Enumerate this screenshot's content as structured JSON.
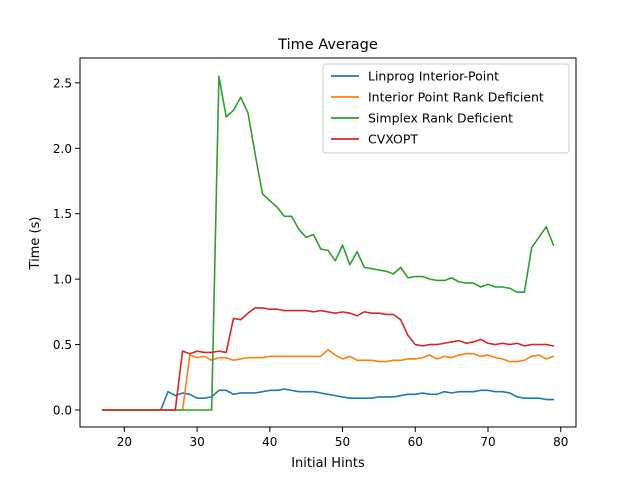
{
  "chart_data": {
    "type": "line",
    "title": "Time Average",
    "xlabel": "Initial Hints",
    "ylabel": "Time (s)",
    "xlim": [
      13.9,
      82.1
    ],
    "ylim": [
      -0.13,
      2.69
    ],
    "xticks": [
      20,
      30,
      40,
      50,
      60,
      70,
      80
    ],
    "yticks": [
      0.0,
      0.5,
      1.0,
      1.5,
      2.0,
      2.5
    ],
    "xtick_labels": [
      "20",
      "30",
      "40",
      "50",
      "60",
      "70",
      "80"
    ],
    "ytick_labels": [
      "0.0",
      "0.5",
      "1.0",
      "1.5",
      "2.0",
      "2.5"
    ],
    "grid": false,
    "legend_position": "top-right",
    "x": [
      17,
      18,
      19,
      20,
      21,
      22,
      23,
      24,
      25,
      26,
      27,
      28,
      29,
      30,
      31,
      32,
      33,
      34,
      35,
      36,
      37,
      38,
      39,
      40,
      41,
      42,
      43,
      44,
      45,
      46,
      47,
      48,
      49,
      50,
      51,
      52,
      53,
      54,
      55,
      56,
      57,
      58,
      59,
      60,
      61,
      62,
      63,
      64,
      65,
      66,
      67,
      68,
      69,
      70,
      71,
      72,
      73,
      74,
      75,
      76,
      77,
      78,
      79
    ],
    "series": [
      {
        "name": "Linprog Interior-Point",
        "color": "#1f77b4",
        "values": [
          0,
          0,
          0,
          0,
          0,
          0,
          0,
          0,
          0,
          0.14,
          0.11,
          0.13,
          0.12,
          0.09,
          0.09,
          0.1,
          0.15,
          0.15,
          0.12,
          0.13,
          0.13,
          0.13,
          0.14,
          0.15,
          0.15,
          0.16,
          0.15,
          0.14,
          0.14,
          0.14,
          0.13,
          0.12,
          0.11,
          0.1,
          0.09,
          0.09,
          0.09,
          0.09,
          0.1,
          0.1,
          0.1,
          0.11,
          0.12,
          0.12,
          0.13,
          0.12,
          0.12,
          0.14,
          0.13,
          0.14,
          0.14,
          0.14,
          0.15,
          0.15,
          0.14,
          0.14,
          0.13,
          0.1,
          0.09,
          0.09,
          0.09,
          0.08,
          0.08
        ]
      },
      {
        "name": "Interior Point Rank Deficient",
        "color": "#ff7f0e",
        "values": [
          0,
          0,
          0,
          0,
          0,
          0,
          0,
          0,
          0,
          0,
          0,
          0,
          0.42,
          0.4,
          0.41,
          0.38,
          0.4,
          0.4,
          0.38,
          0.39,
          0.4,
          0.4,
          0.4,
          0.41,
          0.41,
          0.41,
          0.41,
          0.41,
          0.41,
          0.41,
          0.41,
          0.46,
          0.42,
          0.39,
          0.41,
          0.38,
          0.38,
          0.38,
          0.37,
          0.37,
          0.38,
          0.38,
          0.39,
          0.39,
          0.4,
          0.42,
          0.39,
          0.41,
          0.4,
          0.42,
          0.43,
          0.43,
          0.41,
          0.42,
          0.4,
          0.39,
          0.37,
          0.37,
          0.38,
          0.41,
          0.42,
          0.39,
          0.41
        ]
      },
      {
        "name": "Simplex Rank Deficient",
        "color": "#2ca02c",
        "values": [
          0,
          0,
          0,
          0,
          0,
          0,
          0,
          0,
          0,
          0,
          0,
          0,
          0,
          0,
          0,
          0,
          2.55,
          2.24,
          2.29,
          2.39,
          2.27,
          1.95,
          1.65,
          1.6,
          1.55,
          1.48,
          1.48,
          1.38,
          1.32,
          1.34,
          1.23,
          1.22,
          1.14,
          1.26,
          1.11,
          1.21,
          1.09,
          1.08,
          1.07,
          1.06,
          1.04,
          1.09,
          1.01,
          1.02,
          1.02,
          1.0,
          0.99,
          0.99,
          1.01,
          0.98,
          0.97,
          0.97,
          0.94,
          0.96,
          0.94,
          0.94,
          0.93,
          0.9,
          0.9,
          1.24,
          1.32,
          1.4,
          1.26
        ]
      },
      {
        "name": "CVXOPT",
        "color": "#d62728",
        "values": [
          0,
          0,
          0,
          0,
          0,
          0,
          0,
          0,
          0,
          0,
          0,
          0.45,
          0.43,
          0.45,
          0.44,
          0.44,
          0.45,
          0.44,
          0.7,
          0.69,
          0.74,
          0.78,
          0.78,
          0.77,
          0.77,
          0.76,
          0.76,
          0.76,
          0.76,
          0.75,
          0.76,
          0.75,
          0.74,
          0.75,
          0.74,
          0.72,
          0.75,
          0.74,
          0.74,
          0.73,
          0.73,
          0.69,
          0.57,
          0.5,
          0.49,
          0.5,
          0.5,
          0.51,
          0.52,
          0.53,
          0.51,
          0.52,
          0.54,
          0.51,
          0.5,
          0.51,
          0.5,
          0.51,
          0.49,
          0.5,
          0.5,
          0.5,
          0.49
        ]
      }
    ]
  }
}
